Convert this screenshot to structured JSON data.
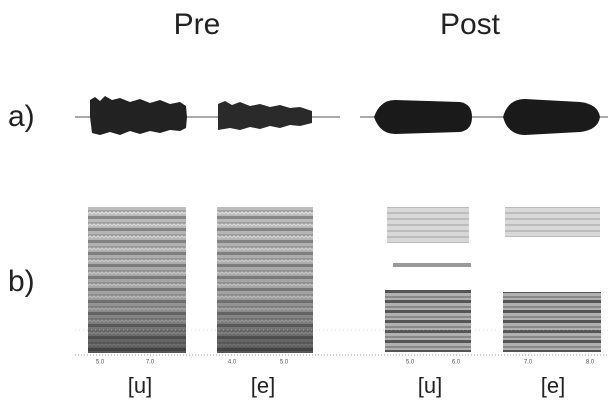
{
  "columns": [
    "Pre",
    "Post"
  ],
  "rows": [
    "a)",
    "b)"
  ],
  "segments": [
    {
      "label": "[u]",
      "ticks": [
        "5.0",
        "7.0"
      ]
    },
    {
      "label": "[e]",
      "ticks": [
        "4.0",
        "5.0"
      ]
    },
    {
      "label": "[u]",
      "ticks": [
        "5.0",
        "6.0"
      ]
    },
    {
      "label": "[e]",
      "ticks": [
        "7.0",
        "8.0"
      ]
    }
  ]
}
